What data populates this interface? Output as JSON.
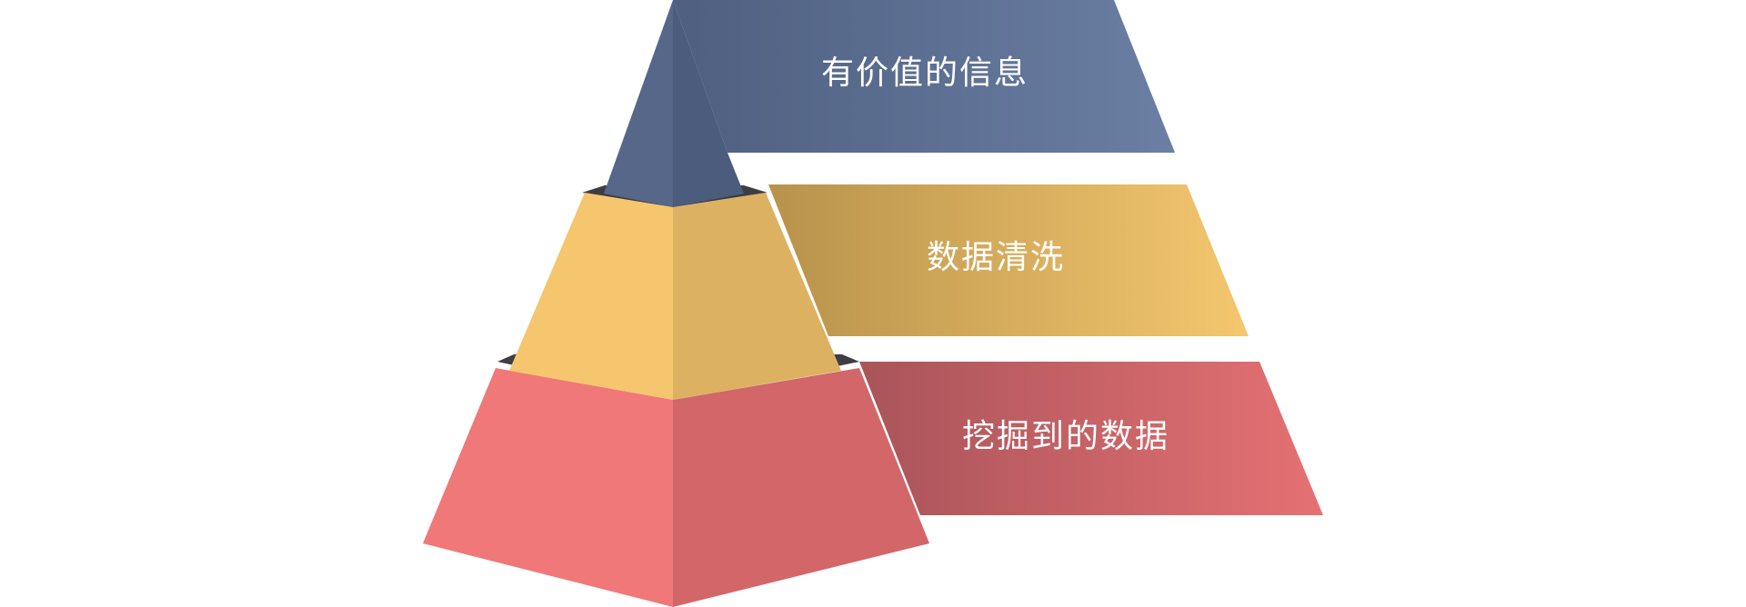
{
  "diagram": {
    "type": "pyramid",
    "levels": [
      {
        "label": "有价值的信息",
        "colors": {
          "band": "#6A7FA3",
          "band_dark": "#4F5F80",
          "face_left": "#56678A",
          "face_right": "#4C5C7C"
        }
      },
      {
        "label": "数据清洗",
        "colors": {
          "band": "#F4C76E",
          "band_dark": "#B8924C",
          "face_left": "#F5C66E",
          "face_right": "#DCB262"
        }
      },
      {
        "label": "挖掘到的数据",
        "colors": {
          "band": "#E57173",
          "band_dark": "#A9545A",
          "face_left": "#F07879",
          "face_right": "#D26668"
        }
      }
    ],
    "shadow_color": "#3E3E42"
  }
}
